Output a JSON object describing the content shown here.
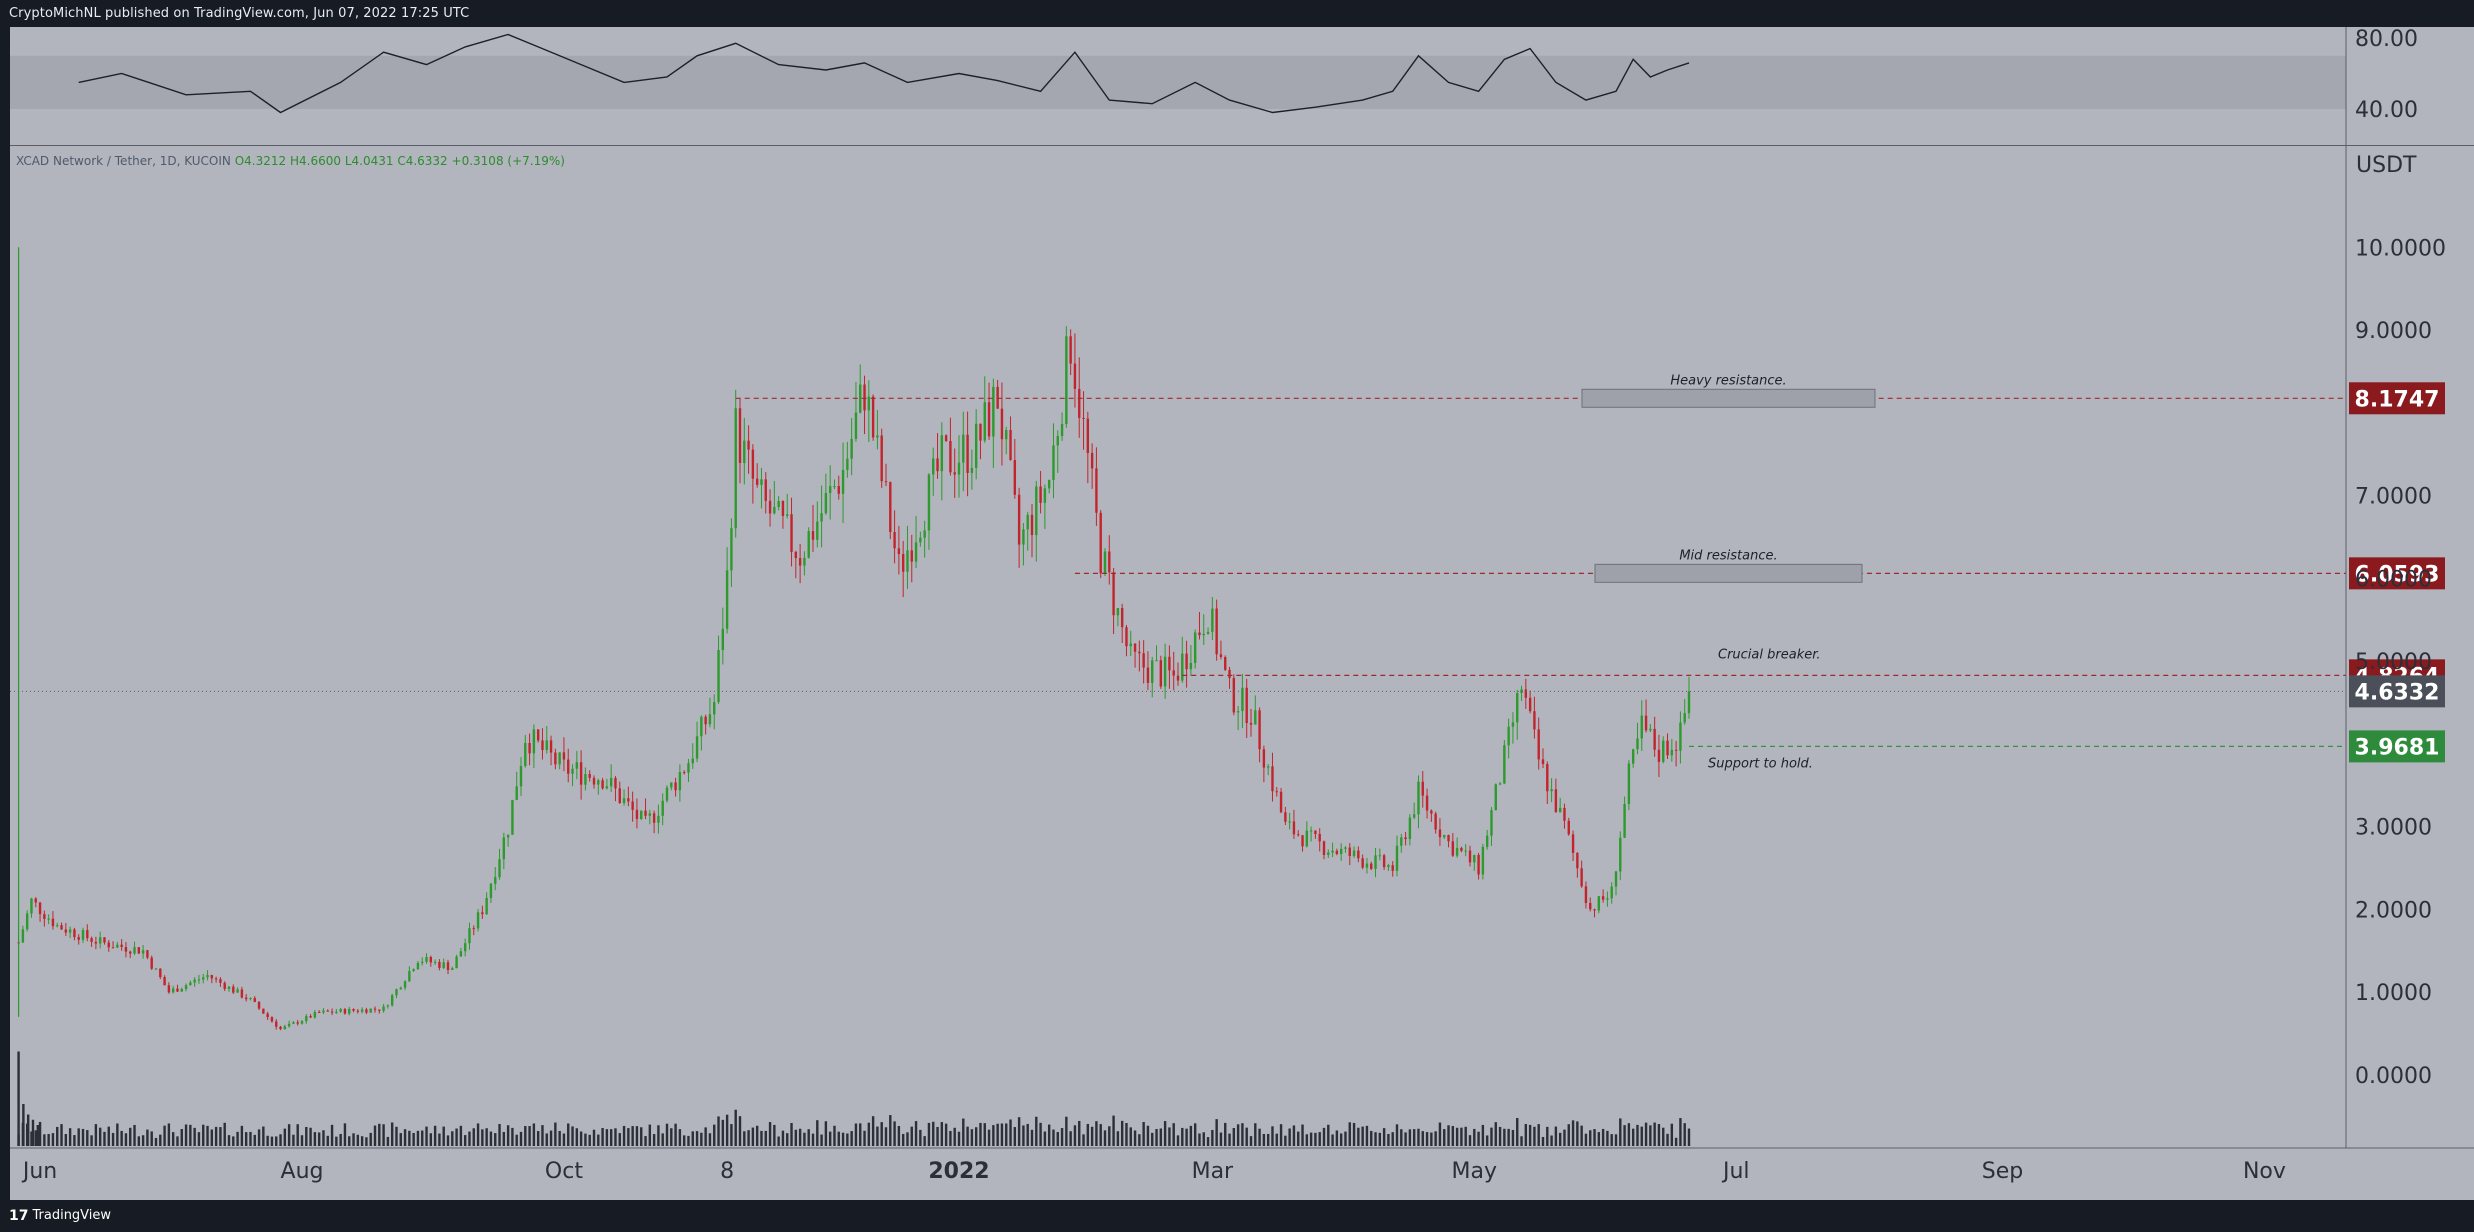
{
  "header": {
    "publisher_text": "CryptoMichNL published on TradingView.com, Jun 07, 2022 17:25 UTC"
  },
  "footer": {
    "brand_logo": "17",
    "brand_text": "TradingView"
  },
  "symbol": {
    "name": "XCAD Network / Tether, 1D, KUCOIN",
    "open": "O4.3212",
    "high": "H4.6600",
    "low": "L4.0431",
    "close": "C4.6332",
    "change": "+0.3108 (+7.19%)"
  },
  "price_axis": {
    "unit": "USDT",
    "ticks": [
      "10.0000",
      "9.0000",
      "7.0000",
      "6.0000",
      "5.0000",
      "3.0000",
      "2.0000",
      "1.0000",
      "0.0000"
    ]
  },
  "rsi_axis": {
    "ticks": [
      "80.00",
      "40.00"
    ]
  },
  "time_axis": {
    "labels": [
      "Jun",
      "Aug",
      "Oct",
      "8",
      "2022",
      "Mar",
      "May",
      "Jul",
      "Sep",
      "Nov"
    ]
  },
  "colors": {
    "background": "#b2b5be",
    "up": "#2c9a2c",
    "down": "#c3242b",
    "resistance_badge": "#8b1a1e",
    "support_badge": "#2e8b3c",
    "last_price_badge": "#4a4f59"
  },
  "annotations": [
    {
      "text": "Heavy resistance.",
      "price": 8.1747,
      "badge": "8.1747",
      "kind": "resistance"
    },
    {
      "text": "Mid resistance.",
      "price": 6.0593,
      "badge": "6.0593",
      "kind": "resistance"
    },
    {
      "text": "Crucial breaker.",
      "price": 4.8264,
      "badge": "4.8264",
      "kind": "resistance"
    },
    {
      "text": "Support to hold.",
      "price": 3.9681,
      "badge": "3.9681",
      "kind": "support"
    }
  ],
  "last_price": {
    "price": 4.6332,
    "label": "4.6332"
  },
  "chart_data": {
    "type": "line",
    "title": "XCAD Network / Tether, 1D, KUCOIN",
    "ylabel": "USDT",
    "ylim": [
      -0.8,
      11
    ],
    "x_range": [
      "2021-05-25",
      "2022-11-20"
    ],
    "series": [
      {
        "values": [
          [
            "2021-05-27",
            1.6
          ],
          [
            "2021-05-30",
            2.1
          ],
          [
            "2021-06-05",
            1.8
          ],
          [
            "2021-06-15",
            1.6
          ],
          [
            "2021-06-25",
            1.5
          ],
          [
            "2021-07-01",
            1.0
          ],
          [
            "2021-07-10",
            1.2
          ],
          [
            "2021-07-20",
            0.9
          ],
          [
            "2021-07-27",
            0.55
          ],
          [
            "2021-08-05",
            0.75
          ],
          [
            "2021-08-20",
            0.8
          ],
          [
            "2021-08-28",
            1.4
          ],
          [
            "2021-09-05",
            1.3
          ],
          [
            "2021-09-12",
            2.0
          ],
          [
            "2021-09-18",
            3.0
          ],
          [
            "2021-09-22",
            4.1
          ],
          [
            "2021-10-01",
            3.7
          ],
          [
            "2021-10-10",
            3.6
          ],
          [
            "2021-10-20",
            3.0
          ],
          [
            "2021-10-30",
            3.8
          ],
          [
            "2021-11-05",
            4.5
          ],
          [
            "2021-11-08",
            6.0
          ],
          [
            "2021-11-10",
            7.8
          ],
          [
            "2021-11-15",
            7.0
          ],
          [
            "2021-11-25",
            6.3
          ],
          [
            "2021-12-05",
            7.3
          ],
          [
            "2021-12-10",
            8.3
          ],
          [
            "2021-12-18",
            6.1
          ],
          [
            "2021-12-28",
            7.4
          ],
          [
            "2022-01-05",
            7.6
          ],
          [
            "2022-01-10",
            8.2
          ],
          [
            "2022-01-15",
            6.4
          ],
          [
            "2022-01-22",
            7.2
          ],
          [
            "2022-01-27",
            8.9
          ],
          [
            "2022-02-03",
            6.3
          ],
          [
            "2022-02-10",
            5.0
          ],
          [
            "2022-02-20",
            4.8
          ],
          [
            "2022-02-28",
            5.6
          ],
          [
            "2022-03-05",
            4.6
          ],
          [
            "2022-03-10",
            4.4
          ],
          [
            "2022-03-18",
            3.0
          ],
          [
            "2022-03-25",
            2.8
          ],
          [
            "2022-04-05",
            2.6
          ],
          [
            "2022-04-12",
            2.5
          ],
          [
            "2022-04-18",
            3.4
          ],
          [
            "2022-04-25",
            2.8
          ],
          [
            "2022-05-02",
            2.5
          ],
          [
            "2022-05-07",
            3.6
          ],
          [
            "2022-05-12",
            4.7
          ],
          [
            "2022-05-16",
            3.8
          ],
          [
            "2022-05-22",
            3.0
          ],
          [
            "2022-05-28",
            2.0
          ],
          [
            "2022-06-02",
            2.2
          ],
          [
            "2022-06-06",
            3.6
          ],
          [
            "2022-06-09",
            4.2
          ],
          [
            "2022-06-13",
            3.9
          ],
          [
            "2022-06-18",
            4.1
          ],
          [
            "2022-06-20",
            4.6332
          ]
        ]
      },
      {
        "values": [
          [
            "2021-06-10",
            55
          ],
          [
            "2021-06-20",
            60
          ],
          [
            "2021-07-05",
            48
          ],
          [
            "2021-07-20",
            50
          ],
          [
            "2021-07-27",
            38
          ],
          [
            "2021-08-10",
            55
          ],
          [
            "2021-08-20",
            72
          ],
          [
            "2021-08-30",
            65
          ],
          [
            "2021-09-08",
            75
          ],
          [
            "2021-09-18",
            82
          ],
          [
            "2021-09-25",
            75
          ],
          [
            "2021-10-05",
            65
          ],
          [
            "2021-10-15",
            55
          ],
          [
            "2021-10-25",
            58
          ],
          [
            "2021-11-01",
            70
          ],
          [
            "2021-11-10",
            77
          ],
          [
            "2021-11-20",
            65
          ],
          [
            "2021-12-01",
            62
          ],
          [
            "2021-12-10",
            66
          ],
          [
            "2021-12-20",
            55
          ],
          [
            "2022-01-01",
            60
          ],
          [
            "2022-01-10",
            56
          ],
          [
            "2022-01-20",
            50
          ],
          [
            "2022-01-28",
            72
          ],
          [
            "2022-02-05",
            45
          ],
          [
            "2022-02-15",
            43
          ],
          [
            "2022-02-25",
            55
          ],
          [
            "2022-03-05",
            45
          ],
          [
            "2022-03-15",
            38
          ],
          [
            "2022-03-25",
            41
          ],
          [
            "2022-04-05",
            45
          ],
          [
            "2022-04-12",
            50
          ],
          [
            "2022-04-18",
            70
          ],
          [
            "2022-04-25",
            55
          ],
          [
            "2022-05-02",
            50
          ],
          [
            "2022-05-08",
            68
          ],
          [
            "2022-05-14",
            74
          ],
          [
            "2022-05-20",
            55
          ],
          [
            "2022-05-27",
            45
          ],
          [
            "2022-06-03",
            50
          ],
          [
            "2022-06-07",
            68
          ],
          [
            "2022-06-11",
            58
          ],
          [
            "2022-06-15",
            62
          ],
          [
            "2022-06-20",
            66
          ]
        ]
      }
    ],
    "rsi_ylim": [
      30,
      88
    ],
    "rsi_band": [
      40,
      70
    ],
    "volume_levels": [
      0.9,
      0.4,
      0.3,
      0.25,
      0.2
    ]
  }
}
